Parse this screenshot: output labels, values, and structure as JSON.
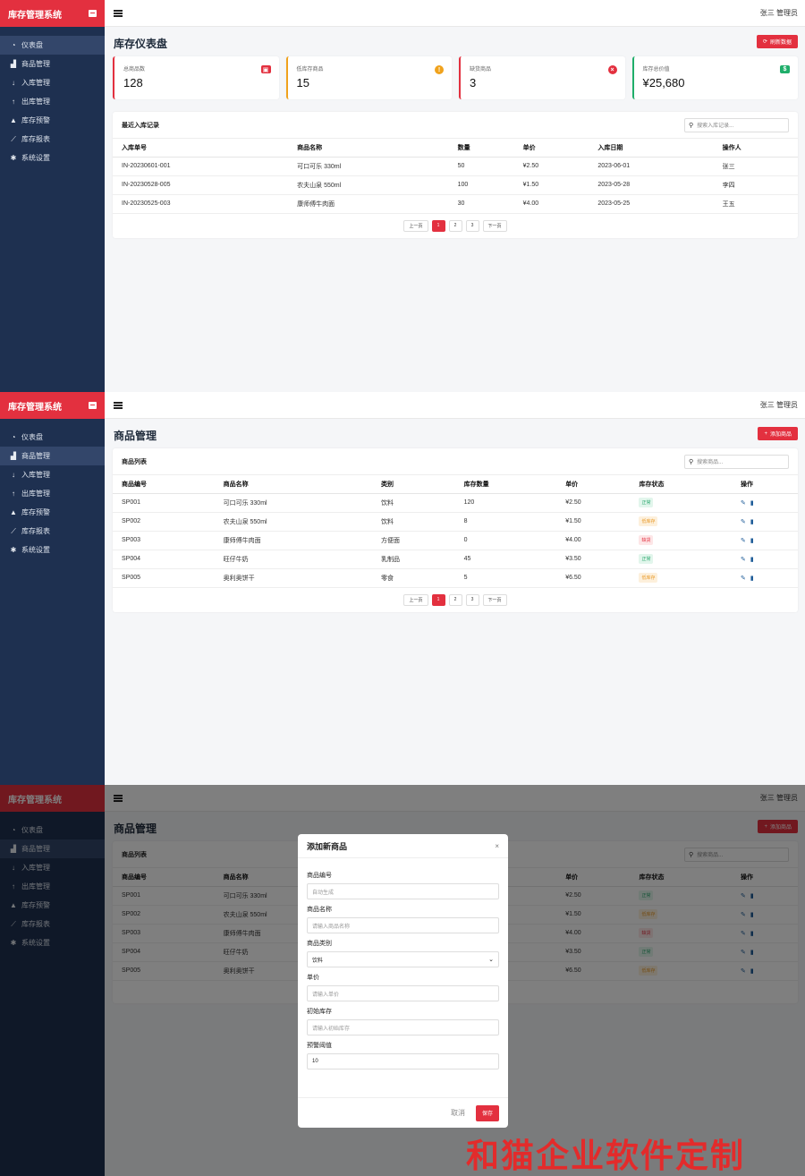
{
  "app": {
    "brand": "库存管理系统",
    "user": "张三 管理员",
    "nav": [
      {
        "label": "仪表盘",
        "icon": "dashboard-icon"
      },
      {
        "label": "商品管理",
        "icon": "boxes-icon"
      },
      {
        "label": "入库管理",
        "icon": "arrow-down-icon"
      },
      {
        "label": "出库管理",
        "icon": "arrow-up-icon"
      },
      {
        "label": "库存预警",
        "icon": "warning-icon"
      },
      {
        "label": "库存报表",
        "icon": "chart-icon"
      },
      {
        "label": "系统设置",
        "icon": "gear-icon"
      }
    ]
  },
  "dashboard": {
    "title": "库存仪表盘",
    "refresh_label": "刷新数据",
    "stats": [
      {
        "label": "总商品数",
        "value": "128",
        "color": "#e3303f",
        "icon": "briefcase-icon"
      },
      {
        "label": "低库存商品",
        "value": "15",
        "color": "#f0a21c",
        "icon": "exclamation-icon"
      },
      {
        "label": "缺货商品",
        "value": "3",
        "color": "#e3303f",
        "icon": "times-circle-icon"
      },
      {
        "label": "库存总价值",
        "value": "¥25,680",
        "color": "#1fae6a",
        "icon": "money-icon"
      }
    ],
    "records": {
      "title": "最近入库记录",
      "search_placeholder": "搜索入库记录...",
      "headers": [
        "入库单号",
        "商品名称",
        "数量",
        "单价",
        "入库日期",
        "操作人"
      ],
      "rows": [
        [
          "IN-20230601-001",
          "可口可乐 330ml",
          "50",
          "¥2.50",
          "2023-06-01",
          "张三"
        ],
        [
          "IN-20230528-005",
          "农夫山泉 550ml",
          "100",
          "¥1.50",
          "2023-05-28",
          "李四"
        ],
        [
          "IN-20230525-003",
          "康师傅牛肉面",
          "30",
          "¥4.00",
          "2023-05-25",
          "王五"
        ]
      ]
    }
  },
  "products": {
    "title": "商品管理",
    "add_label": "添加商品",
    "list_title": "商品列表",
    "search_placeholder": "搜索商品...",
    "headers": [
      "商品编号",
      "商品名称",
      "类别",
      "库存数量",
      "单价",
      "库存状态",
      "操作"
    ],
    "rows": [
      {
        "id": "SP001",
        "name": "可口可乐 330ml",
        "cat": "饮料",
        "qty": "120",
        "price": "¥2.50",
        "status": "正常",
        "level": "ok"
      },
      {
        "id": "SP002",
        "name": "农夫山泉 550ml",
        "cat": "饮料",
        "qty": "8",
        "price": "¥1.50",
        "status": "低库存",
        "level": "low"
      },
      {
        "id": "SP003",
        "name": "康师傅牛肉面",
        "cat": "方便面",
        "qty": "0",
        "price": "¥4.00",
        "status": "缺货",
        "level": "out"
      },
      {
        "id": "SP004",
        "name": "旺仔牛奶",
        "cat": "乳制品",
        "qty": "45",
        "price": "¥3.50",
        "status": "正常",
        "level": "ok"
      },
      {
        "id": "SP005",
        "name": "奥利奥饼干",
        "cat": "零食",
        "qty": "5",
        "price": "¥6.50",
        "status": "低库存",
        "level": "low"
      }
    ]
  },
  "pager": {
    "prev": "上一页",
    "pages": [
      "1",
      "2",
      "3"
    ],
    "next": "下一页"
  },
  "modal": {
    "title": "添加新商品",
    "close": "×",
    "fields": [
      {
        "label": "商品编号",
        "placeholder": "自动生成"
      },
      {
        "label": "商品名称",
        "placeholder": "请输入商品名称"
      },
      {
        "label": "商品类别",
        "value": "饮料"
      },
      {
        "label": "单价",
        "placeholder": "请输入单价"
      },
      {
        "label": "初始库存",
        "placeholder": "请输入初始库存"
      },
      {
        "label": "预警阈值",
        "value": "10"
      }
    ],
    "cancel": "取消",
    "save": "保存"
  },
  "watermark": "和猫企业软件定制"
}
